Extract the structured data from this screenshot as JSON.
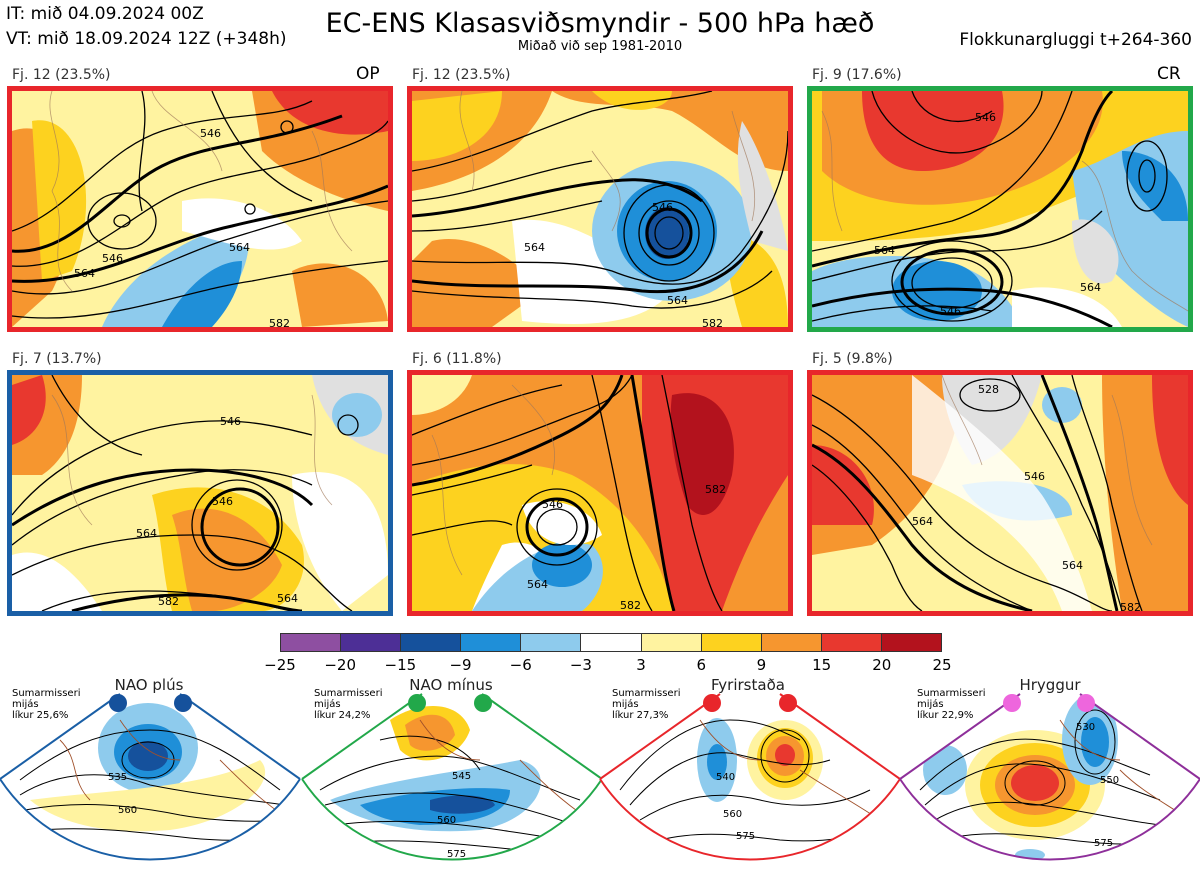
{
  "header": {
    "it_line": "IT: mið 04.09.2024 00Z",
    "vt_line": "VT: mið 18.09.2024 12Z  (+348h)",
    "title": "EC-ENS Klasasviðsmyndir - 500 hPa hæð",
    "subtitle": "Miðað við sep 1981-2010",
    "window": "Flokkunargluggi t+264-360"
  },
  "panels": [
    {
      "label": "Fj. 12 (23.5%)",
      "tag": "OP",
      "frame_color": "#e8262b",
      "contours": [
        "546",
        "546",
        "564",
        "564",
        "582"
      ]
    },
    {
      "label": "Fj. 12 (23.5%)",
      "tag": "",
      "frame_color": "#e8262b",
      "contours": [
        "546",
        "564",
        "564",
        "582"
      ]
    },
    {
      "label": "Fj. 9 (17.6%)",
      "tag": "CR",
      "frame_color": "#22a84a",
      "contours": [
        "546",
        "564",
        "564",
        "546"
      ]
    },
    {
      "label": "Fj. 7 (13.7%)",
      "tag": "",
      "frame_color": "#1a5fa6",
      "contours": [
        "546",
        "546",
        "564",
        "564",
        "582"
      ]
    },
    {
      "label": "Fj. 6 (11.8%)",
      "tag": "",
      "frame_color": "#e8262b",
      "contours": [
        "546",
        "564",
        "582",
        "582"
      ]
    },
    {
      "label": "Fj. 5 (9.8%)",
      "tag": "",
      "frame_color": "#e8262b",
      "contours": [
        "528",
        "546",
        "564",
        "564",
        "582"
      ]
    }
  ],
  "colorbar": {
    "colors": [
      "#8e4fa1",
      "#4d2f96",
      "#15519c",
      "#1f8fd8",
      "#8ecbed",
      "#ffffff",
      "#fff3a0",
      "#fdd21f",
      "#f6962f",
      "#e8382f",
      "#b3121d"
    ],
    "ticks": [
      "−25",
      "−20",
      "−15",
      "−9",
      "−6",
      "−3",
      "3",
      "6",
      "9",
      "15",
      "20",
      "25"
    ]
  },
  "regimes": [
    {
      "title": "NAO plús",
      "clim": [
        "Sumarmisseri",
        "mijás",
        "líkur 25,6%"
      ],
      "color": "#1a5fa6",
      "contours": [
        "535",
        "560"
      ]
    },
    {
      "title": "NAO mínus",
      "clim": [
        "Sumarmisseri",
        "mijás",
        "líkur 24,2%"
      ],
      "color": "#22a84a",
      "contours": [
        "545",
        "560",
        "575"
      ]
    },
    {
      "title": "Fyrirstaða",
      "clim": [
        "Sumarmisseri",
        "mijás",
        "líkur 27,3%"
      ],
      "color": "#e8262b",
      "contours": [
        "540",
        "560",
        "575"
      ]
    },
    {
      "title": "Hryggur",
      "clim": [
        "Sumarmisseri",
        "mijás",
        "líkur 22,9%"
      ],
      "color": "#8e2f9a",
      "dot_color": "#ee66dd",
      "contours": [
        "530",
        "550",
        "575"
      ]
    }
  ]
}
